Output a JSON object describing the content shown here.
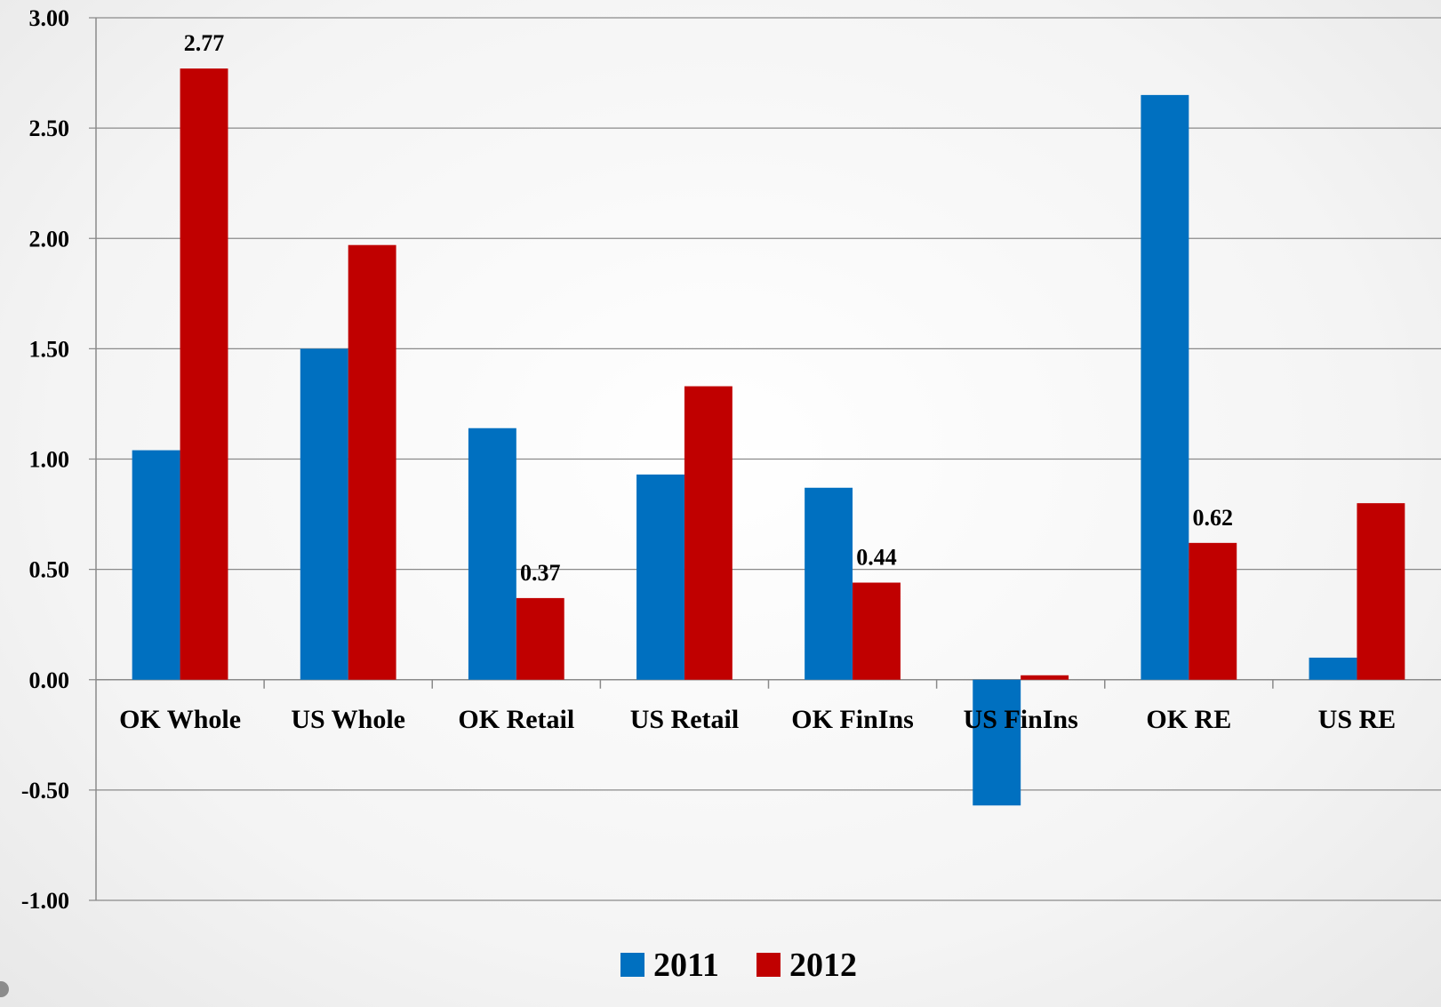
{
  "chart_data": {
    "type": "bar",
    "categories": [
      "OK Whole",
      "US Whole",
      "OK Retail",
      "US Retail",
      "OK FinIns",
      "US FinIns",
      "OK RE",
      "US RE"
    ],
    "series": [
      {
        "name": "2011",
        "color": "#0070c0",
        "values": [
          1.04,
          1.5,
          1.14,
          0.93,
          0.87,
          -0.57,
          2.65,
          0.1
        ]
      },
      {
        "name": "2012",
        "color": "#c00000",
        "values": [
          2.77,
          1.97,
          0.37,
          1.33,
          0.44,
          0.02,
          0.62,
          0.8
        ]
      }
    ],
    "data_labels": [
      {
        "series": 1,
        "category": 0,
        "text": "2.77"
      },
      {
        "series": 1,
        "category": 2,
        "text": "0.37"
      },
      {
        "series": 1,
        "category": 4,
        "text": "0.44"
      },
      {
        "series": 1,
        "category": 6,
        "text": "0.62"
      }
    ],
    "ylim": [
      -1.0,
      3.0
    ],
    "yticks": [
      "3.00",
      "2.50",
      "2.00",
      "1.50",
      "1.00",
      "0.50",
      "0.00",
      "-0.50",
      "-1.00"
    ],
    "grid": true,
    "legend": "bottom-center",
    "title": "",
    "xlabel": "",
    "ylabel": ""
  }
}
